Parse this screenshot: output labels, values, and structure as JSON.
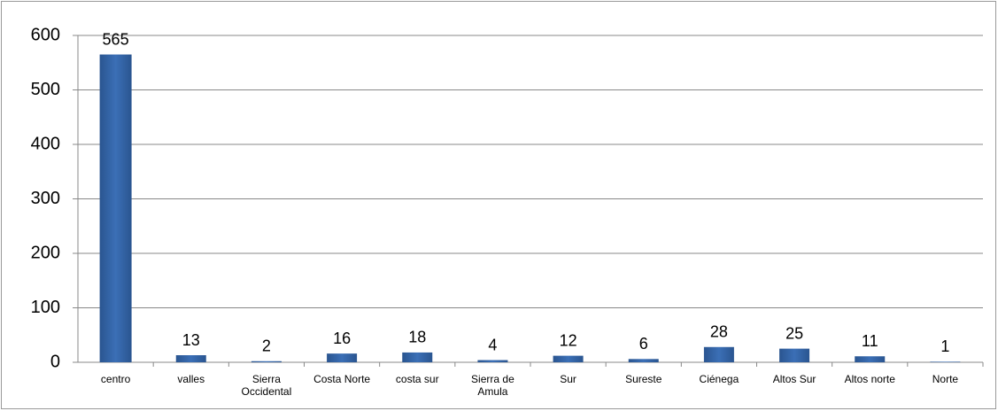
{
  "chart_data": {
    "type": "bar",
    "categories": [
      "centro",
      "valles",
      "Sierra Occidental",
      "Costa Norte",
      "costa sur",
      "Sierra de Amula",
      "Sur",
      "Sureste",
      "Ciénega",
      "Altos Sur",
      "Altos norte",
      "Norte"
    ],
    "values": [
      565,
      13,
      2,
      16,
      18,
      4,
      12,
      6,
      28,
      25,
      11,
      1
    ],
    "color": "#3b6fb6",
    "ylim": [
      0,
      600
    ],
    "yticks": [
      0,
      100,
      200,
      300,
      400,
      500,
      600
    ],
    "grid": true
  }
}
